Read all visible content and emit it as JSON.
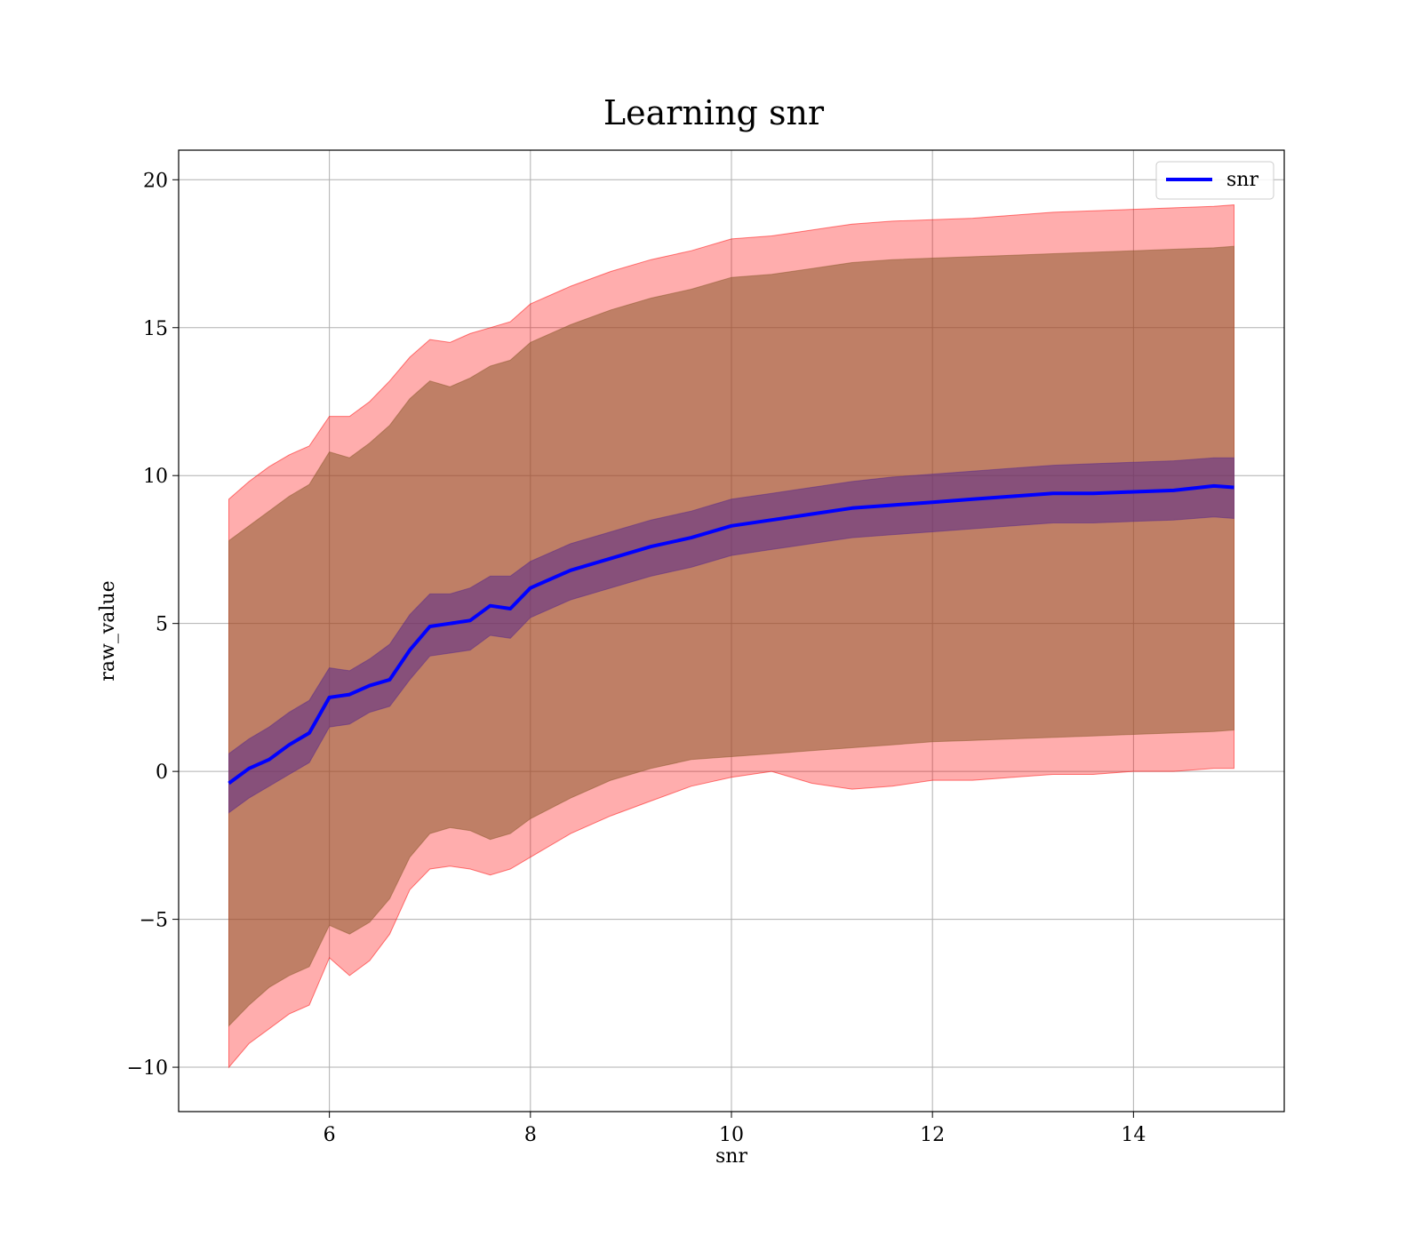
{
  "chart_data": {
    "type": "line",
    "title": "Learning snr",
    "xlabel": "snr",
    "ylabel": "raw_value",
    "xlim": [
      4.5,
      15.5
    ],
    "ylim": [
      -11.5,
      21.0
    ],
    "xticks": [
      6,
      8,
      10,
      12,
      14
    ],
    "yticks": [
      -10,
      -5,
      0,
      5,
      10,
      15,
      20
    ],
    "xtick_labels": [
      "6",
      "8",
      "10",
      "12",
      "14"
    ],
    "ytick_labels": [
      "−10",
      "−5",
      "0",
      "5",
      "10",
      "15",
      "20"
    ],
    "grid": true,
    "legend": {
      "position": "top-right",
      "entries": [
        "snr"
      ]
    },
    "colors": {
      "line": "#0000ff",
      "outer_band": "#ff0000",
      "middle_band": "#8b5a2b",
      "inner_band": "#5a2a8a"
    },
    "x": [
      5.0,
      5.2,
      5.4,
      5.6,
      5.8,
      6.0,
      6.2,
      6.4,
      6.6,
      6.8,
      7.0,
      7.2,
      7.4,
      7.6,
      7.8,
      8.0,
      8.4,
      8.8,
      9.2,
      9.6,
      10.0,
      10.4,
      10.8,
      11.2,
      11.6,
      12.0,
      12.4,
      12.8,
      13.2,
      13.6,
      14.0,
      14.4,
      14.8,
      15.0
    ],
    "series": [
      {
        "name": "snr",
        "values": [
          -0.4,
          0.1,
          0.4,
          0.9,
          1.3,
          2.5,
          2.6,
          2.9,
          3.1,
          4.1,
          4.9,
          5.0,
          5.1,
          5.6,
          5.5,
          6.2,
          6.8,
          7.2,
          7.6,
          7.9,
          8.3,
          8.5,
          8.7,
          8.9,
          9.0,
          9.1,
          9.2,
          9.3,
          9.4,
          9.4,
          9.45,
          9.5,
          9.65,
          9.6
        ]
      }
    ],
    "bands": [
      {
        "role": "outer",
        "upper": [
          9.2,
          9.8,
          10.3,
          10.7,
          11.0,
          12.0,
          12.0,
          12.5,
          13.2,
          14.0,
          14.6,
          14.5,
          14.8,
          15.0,
          15.2,
          15.8,
          16.4,
          16.9,
          17.3,
          17.6,
          18.0,
          18.1,
          18.3,
          18.5,
          18.6,
          18.65,
          18.7,
          18.8,
          18.9,
          18.95,
          19.0,
          19.05,
          19.1,
          19.15
        ],
        "lower": [
          -10.0,
          -9.2,
          -8.7,
          -8.2,
          -7.9,
          -6.3,
          -6.9,
          -6.4,
          -5.5,
          -4.0,
          -3.3,
          -3.2,
          -3.3,
          -3.5,
          -3.3,
          -2.9,
          -2.1,
          -1.5,
          -1.0,
          -0.5,
          -0.2,
          0.0,
          -0.4,
          -0.6,
          -0.5,
          -0.3,
          -0.3,
          -0.2,
          -0.1,
          -0.1,
          0.0,
          0.0,
          0.1,
          0.1
        ]
      },
      {
        "role": "middle",
        "upper": [
          7.8,
          8.3,
          8.8,
          9.3,
          9.7,
          10.8,
          10.6,
          11.1,
          11.7,
          12.6,
          13.2,
          13.0,
          13.3,
          13.7,
          13.9,
          14.5,
          15.1,
          15.6,
          16.0,
          16.3,
          16.7,
          16.8,
          17.0,
          17.2,
          17.3,
          17.35,
          17.4,
          17.45,
          17.5,
          17.55,
          17.6,
          17.65,
          17.7,
          17.75
        ],
        "lower": [
          -8.6,
          -7.9,
          -7.3,
          -6.9,
          -6.6,
          -5.2,
          -5.5,
          -5.1,
          -4.3,
          -2.9,
          -2.1,
          -1.9,
          -2.0,
          -2.3,
          -2.1,
          -1.6,
          -0.9,
          -0.3,
          0.1,
          0.4,
          0.5,
          0.6,
          0.7,
          0.8,
          0.9,
          1.0,
          1.05,
          1.1,
          1.15,
          1.2,
          1.25,
          1.3,
          1.35,
          1.4
        ]
      },
      {
        "role": "inner",
        "upper": [
          0.6,
          1.1,
          1.5,
          2.0,
          2.4,
          3.5,
          3.4,
          3.8,
          4.3,
          5.3,
          6.0,
          6.0,
          6.2,
          6.6,
          6.6,
          7.1,
          7.7,
          8.1,
          8.5,
          8.8,
          9.2,
          9.4,
          9.6,
          9.8,
          9.95,
          10.05,
          10.15,
          10.25,
          10.35,
          10.4,
          10.45,
          10.5,
          10.6,
          10.6
        ],
        "lower": [
          -1.4,
          -0.9,
          -0.5,
          -0.1,
          0.3,
          1.5,
          1.6,
          2.0,
          2.2,
          3.1,
          3.9,
          4.0,
          4.1,
          4.6,
          4.5,
          5.2,
          5.8,
          6.2,
          6.6,
          6.9,
          7.3,
          7.5,
          7.7,
          7.9,
          8.0,
          8.1,
          8.2,
          8.3,
          8.4,
          8.4,
          8.45,
          8.5,
          8.6,
          8.55
        ]
      }
    ]
  }
}
